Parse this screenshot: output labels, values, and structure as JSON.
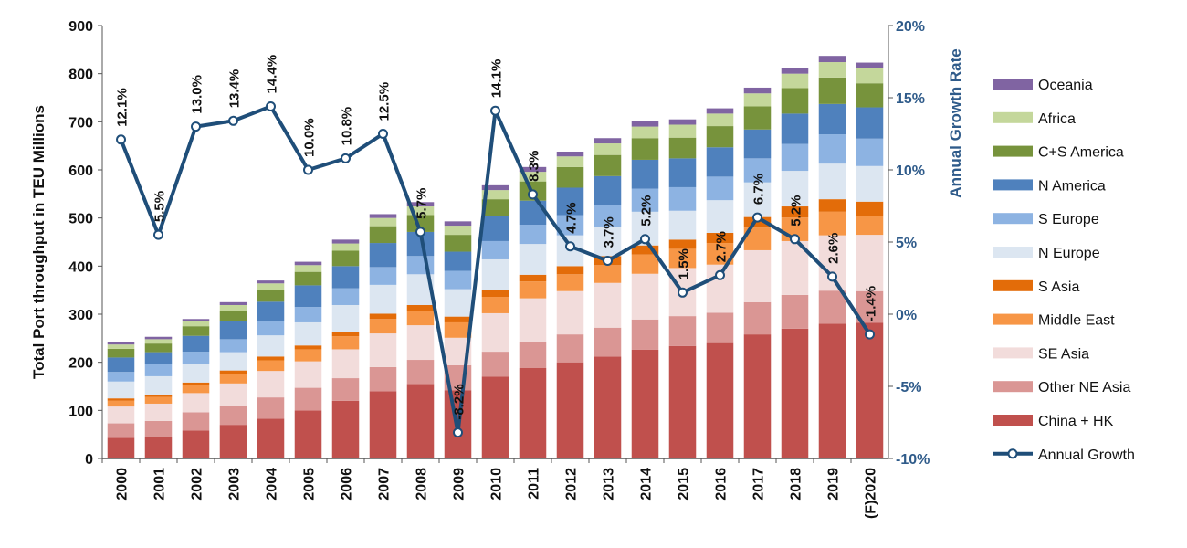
{
  "chart_data": {
    "type": "bar",
    "stacked": true,
    "ylabel": "Total Port throughput in TEU Millions",
    "y2label": "Annual Growth Rate",
    "ylim": [
      0,
      900
    ],
    "yticks": [
      "0",
      "100",
      "200",
      "300",
      "400",
      "500",
      "600",
      "700",
      "800",
      "900"
    ],
    "y2lim": [
      -10,
      20
    ],
    "y2ticks": [
      "-10%",
      "-5%",
      "0%",
      "5%",
      "10%",
      "15%",
      "20%"
    ],
    "categories": [
      "2000",
      "2001",
      "2002",
      "2003",
      "2004",
      "2005",
      "2006",
      "2007",
      "2008",
      "2009",
      "2010",
      "2011",
      "2012",
      "2013",
      "2014",
      "2015",
      "2016",
      "2017",
      "2018",
      "2019",
      "(F)2020"
    ],
    "series": [
      {
        "name": "China + HK",
        "color": "#c0504d",
        "values": [
          43,
          45,
          58,
          70,
          83,
          100,
          120,
          140,
          155,
          142,
          170,
          188,
          200,
          212,
          226,
          234,
          240,
          258,
          270,
          280,
          282
        ]
      },
      {
        "name": "Other NE Asia",
        "color": "#da9694",
        "values": [
          30,
          33,
          38,
          40,
          44,
          47,
          47,
          50,
          50,
          52,
          52,
          55,
          58,
          60,
          63,
          62,
          63,
          67,
          70,
          69,
          66
        ]
      },
      {
        "name": "SE Asia",
        "color": "#f2dcdb",
        "values": [
          35,
          36,
          40,
          46,
          55,
          55,
          60,
          70,
          72,
          57,
          80,
          90,
          90,
          93,
          95,
          100,
          100,
          108,
          112,
          115,
          117
        ]
      },
      {
        "name": "Middle East",
        "color": "#f79646",
        "values": [
          12,
          14,
          16,
          20,
          22,
          25,
          27,
          30,
          30,
          32,
          34,
          35,
          35,
          37,
          40,
          40,
          45,
          47,
          49,
          49,
          40
        ]
      },
      {
        "name": "S Asia",
        "color": "#e36c09",
        "values": [
          5,
          5,
          6,
          7,
          8,
          8,
          9,
          11,
          12,
          12,
          14,
          14,
          17,
          19,
          19,
          19,
          21,
          22,
          23,
          26,
          29
        ]
      },
      {
        "name": "N Europe",
        "color": "#dce6f1",
        "values": [
          35,
          38,
          38,
          38,
          44,
          48,
          56,
          60,
          64,
          57,
          64,
          64,
          64,
          60,
          70,
          60,
          68,
          72,
          74,
          74,
          74
        ]
      },
      {
        "name": "S Europe",
        "color": "#8db3e2",
        "values": [
          20,
          25,
          26,
          27,
          30,
          32,
          35,
          37,
          38,
          38,
          38,
          40,
          42,
          46,
          48,
          49,
          49,
          50,
          56,
          61,
          57
        ]
      },
      {
        "name": "N America",
        "color": "#4f81bd",
        "values": [
          30,
          25,
          33,
          37,
          40,
          45,
          46,
          50,
          50,
          40,
          52,
          50,
          57,
          60,
          60,
          60,
          61,
          60,
          63,
          63,
          65
        ]
      },
      {
        "name": "C+S America",
        "color": "#77933c",
        "values": [
          18,
          18,
          20,
          22,
          24,
          28,
          32,
          35,
          35,
          35,
          35,
          40,
          43,
          44,
          45,
          43,
          44,
          48,
          53,
          55,
          50
        ]
      },
      {
        "name": "Africa",
        "color": "#c4d79b",
        "values": [
          9,
          9,
          10,
          12,
          14,
          14,
          15,
          17,
          18,
          19,
          19,
          20,
          22,
          24,
          24,
          27,
          26,
          27,
          30,
          32,
          31
        ]
      },
      {
        "name": "Oceania",
        "color": "#8064a2",
        "values": [
          5,
          5,
          5,
          6,
          6,
          7,
          8,
          8,
          9,
          9,
          10,
          10,
          10,
          11,
          11,
          11,
          11,
          12,
          12,
          13,
          12
        ]
      }
    ],
    "line_series": {
      "name": "Annual Growth",
      "color": "#1f4e79",
      "values": [
        12.1,
        5.5,
        13.0,
        13.4,
        14.4,
        10.0,
        10.8,
        12.5,
        5.7,
        -8.2,
        14.1,
        8.3,
        4.7,
        3.7,
        5.2,
        1.5,
        2.7,
        6.7,
        5.2,
        2.6,
        -1.4
      ],
      "labels": [
        "12.1%",
        "5.5%",
        "13.0%",
        "13.4%",
        "14.4%",
        "10.0%",
        "10.8%",
        "12.5%",
        "5.7%",
        "-8.2%",
        "14.1%",
        "8.3%",
        "4.7%",
        "3.7%",
        "5.2%",
        "1.5%",
        "2.7%",
        "6.7%",
        "5.2%",
        "2.6%",
        "-1.4%"
      ]
    },
    "legend_position": "right",
    "legend_order": [
      "Oceania",
      "Africa",
      "C+S America",
      "N America",
      "S Europe",
      "N Europe",
      "S Asia",
      "Middle East",
      "SE Asia",
      "Other NE Asia",
      "China + HK",
      "Annual Growth"
    ]
  }
}
